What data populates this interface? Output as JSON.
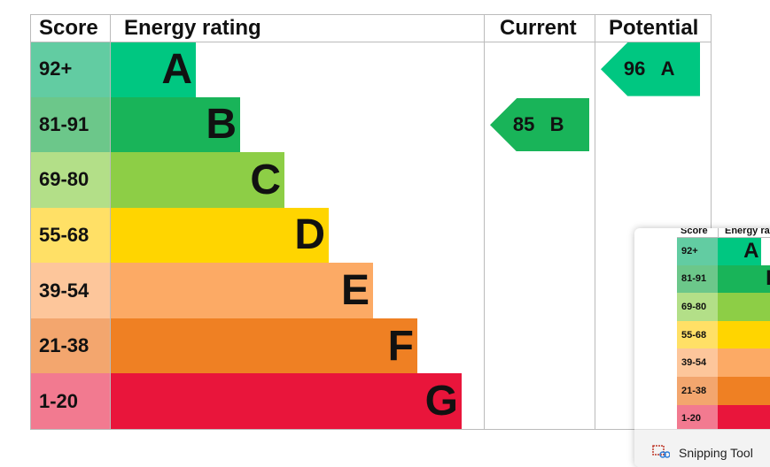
{
  "table": {
    "headers": [
      "Score",
      "Energy rating",
      "Current",
      "Potential"
    ],
    "rows": [
      {
        "score": "92+",
        "rating": "A"
      },
      {
        "score": "81-91",
        "rating": "B"
      },
      {
        "score": "69-80",
        "rating": "C"
      },
      {
        "score": "55-68",
        "rating": "D"
      },
      {
        "score": "39-54",
        "rating": "E"
      },
      {
        "score": "21-38",
        "rating": "F"
      },
      {
        "score": "1-20",
        "rating": "G"
      }
    ]
  },
  "current": {
    "value": 85,
    "rating": "B"
  },
  "potential": {
    "value": 96,
    "rating": "A"
  },
  "notification": {
    "app": "Snipping Tool"
  }
}
